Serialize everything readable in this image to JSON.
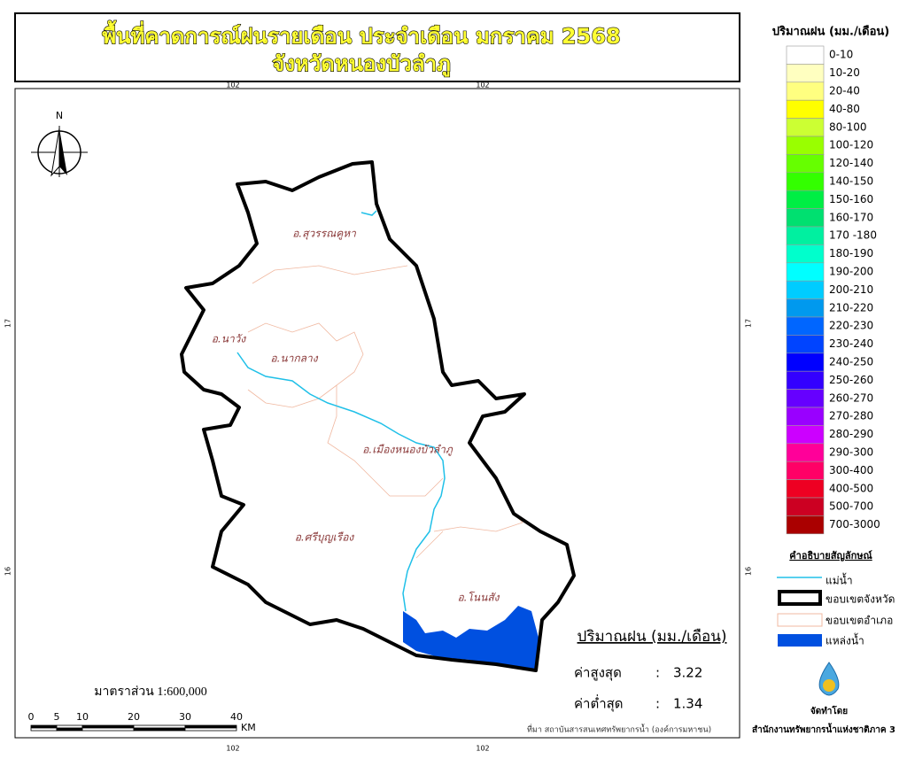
{
  "header": {
    "title": "พื้นที่คาดการณ์ฝนรายเดือน ประจำเดือน มกราคม 2568",
    "subtitle": "จังหวัดหนองบัวลำภู"
  },
  "grid_labels": {
    "top": [
      "102",
      "102"
    ],
    "bottom": [
      "102",
      "102"
    ],
    "left": [
      "17",
      "16"
    ],
    "right": [
      "17",
      "16"
    ]
  },
  "map": {
    "north_label": "N",
    "districts": [
      "อ.สุวรรณคูหา",
      "อ.นาวัง",
      "อ.นากลาง",
      "อ.เมืองหนองบัวลำภู",
      "อ.ศรีบุญเรือง",
      "อ.โนนสัง"
    ]
  },
  "legend": {
    "title": "ปริมาณฝน (มม./เดือน)",
    "classes": [
      {
        "label": "0-10",
        "color": "#ffffff"
      },
      {
        "label": "10-20",
        "color": "#ffffc0"
      },
      {
        "label": "20-40",
        "color": "#ffff80"
      },
      {
        "label": "40-80",
        "color": "#ffff00"
      },
      {
        "label": "80-100",
        "color": "#ccff33"
      },
      {
        "label": "100-120",
        "color": "#99ff00"
      },
      {
        "label": "120-140",
        "color": "#66ff00"
      },
      {
        "label": "140-150",
        "color": "#33ff00"
      },
      {
        "label": "150-160",
        "color": "#00ee44"
      },
      {
        "label": "160-170",
        "color": "#00e070"
      },
      {
        "label": "170 -180",
        "color": "#00f0a0"
      },
      {
        "label": "180-190",
        "color": "#00ffcc"
      },
      {
        "label": "190-200",
        "color": "#00ffff"
      },
      {
        "label": "200-210",
        "color": "#00ccff"
      },
      {
        "label": "210-220",
        "color": "#0099ee"
      },
      {
        "label": "220-230",
        "color": "#0066ff"
      },
      {
        "label": "230-240",
        "color": "#0044ff"
      },
      {
        "label": "240-250",
        "color": "#0000ff"
      },
      {
        "label": "250-260",
        "color": "#3300ff"
      },
      {
        "label": "260-270",
        "color": "#6600ff"
      },
      {
        "label": "270-280",
        "color": "#9900ff"
      },
      {
        "label": "280-290",
        "color": "#cc00ff"
      },
      {
        "label": "290-300",
        "color": "#ff0099"
      },
      {
        "label": "300-400",
        "color": "#ff0066"
      },
      {
        "label": "400-500",
        "color": "#ee0022"
      },
      {
        "label": "500-700",
        "color": "#cc0022"
      },
      {
        "label": "700-3000",
        "color": "#aa0000"
      }
    ]
  },
  "symbols": {
    "title": "คำอธิบายสัญลักษณ์",
    "items": [
      "แม่น้ำ",
      "ขอบเขตจังหวัด",
      "ขอบเขตอำเภอ",
      "แหล่งน้ำ"
    ]
  },
  "stats": {
    "title": "ปริมาณฝน (มม./เดือน)",
    "max_label": "ค่าสูงสุด",
    "max_value": 3.22,
    "min_label": "ค่าต่ำสุด",
    "min_value": 1.34
  },
  "scale": {
    "text": "มาตราส่วน 1:600,000",
    "ticks": [
      0,
      5,
      10,
      20,
      30,
      40
    ],
    "unit": "KM"
  },
  "footer": {
    "source": "ที่มา  สถาบันสารสนเทศทรัพยากรน้ำ (องค์การมหาชน)",
    "by": "จัดทำโดย",
    "org": "สำนักงานทรัพยากรน้ำแห่งชาติภาค 3"
  }
}
